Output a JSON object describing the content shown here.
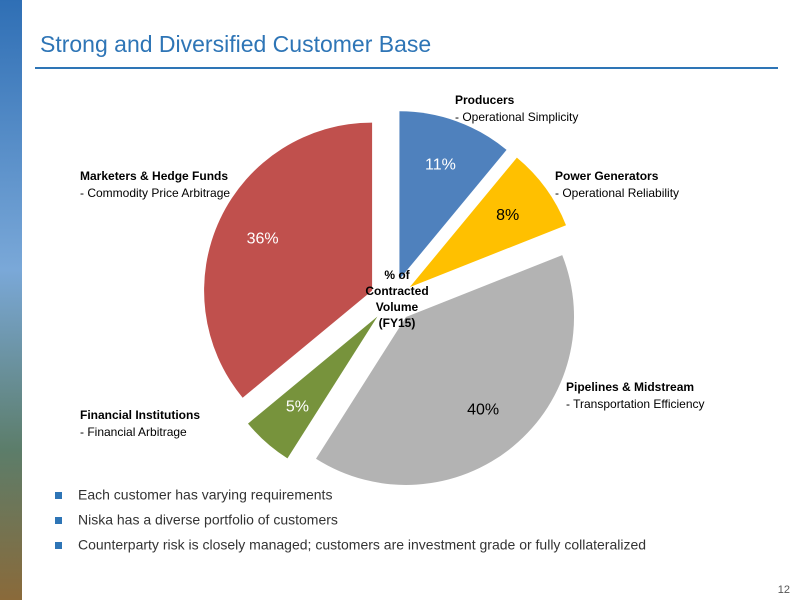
{
  "chart_data": {
    "type": "pie",
    "title": "Strong and Diversified Customer Base",
    "categories": [
      "Producers",
      "Power Generators",
      "Pipelines & Midstream",
      "Financial Institutions",
      "Marketers & Hedge Funds"
    ],
    "descriptions": [
      "- Operational Simplicity",
      "- Operational Reliability",
      "- Transportation Efficiency",
      "- Financial Arbitrage",
      "- Commodity Price Arbitrage"
    ],
    "values": [
      11,
      8,
      40,
      5,
      36
    ],
    "value_labels": [
      "11%",
      "8%",
      "40%",
      "5%",
      "36%"
    ],
    "colors": [
      "#4f81bd",
      "#ffc000",
      "#b3b3b3",
      "#77933c",
      "#c0504d"
    ],
    "center_label": [
      "% of",
      "Contracted",
      "Volume",
      "(FY15)"
    ]
  },
  "bullets": [
    "Each customer has varying requirements",
    "Niska has a diverse portfolio of customers",
    "Counterparty risk is closely managed; customers are investment grade or fully collateralized"
  ],
  "page_number": "12"
}
